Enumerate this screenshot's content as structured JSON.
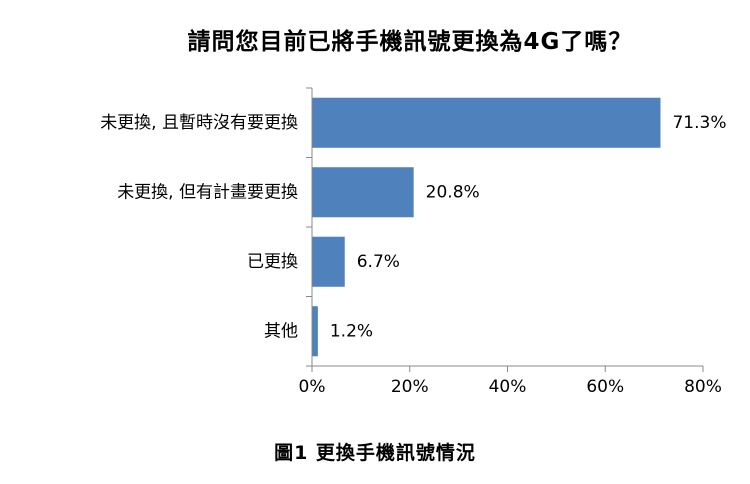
{
  "chart_data": {
    "type": "bar",
    "orientation": "horizontal",
    "title": "請問您目前已將手機訊號更換為4G了嗎？",
    "caption": "圖1 更換手機訊號情況",
    "categories": [
      "未更換, 且暫時沒有要更換",
      "未更換, 但有計畫要更換",
      "已更換",
      "其他"
    ],
    "values": [
      71.3,
      20.8,
      6.7,
      1.2
    ],
    "value_labels": [
      "71.3%",
      "20.8%",
      "6.7%",
      "1.2%"
    ],
    "xlim": [
      0,
      80
    ],
    "xticks": [
      0,
      20,
      40,
      60,
      80
    ],
    "xtick_labels": [
      "0%",
      "20%",
      "40%",
      "60%",
      "80%"
    ],
    "xlabel": "",
    "ylabel": "",
    "grid": false,
    "bar_color": "#4f81bd"
  }
}
